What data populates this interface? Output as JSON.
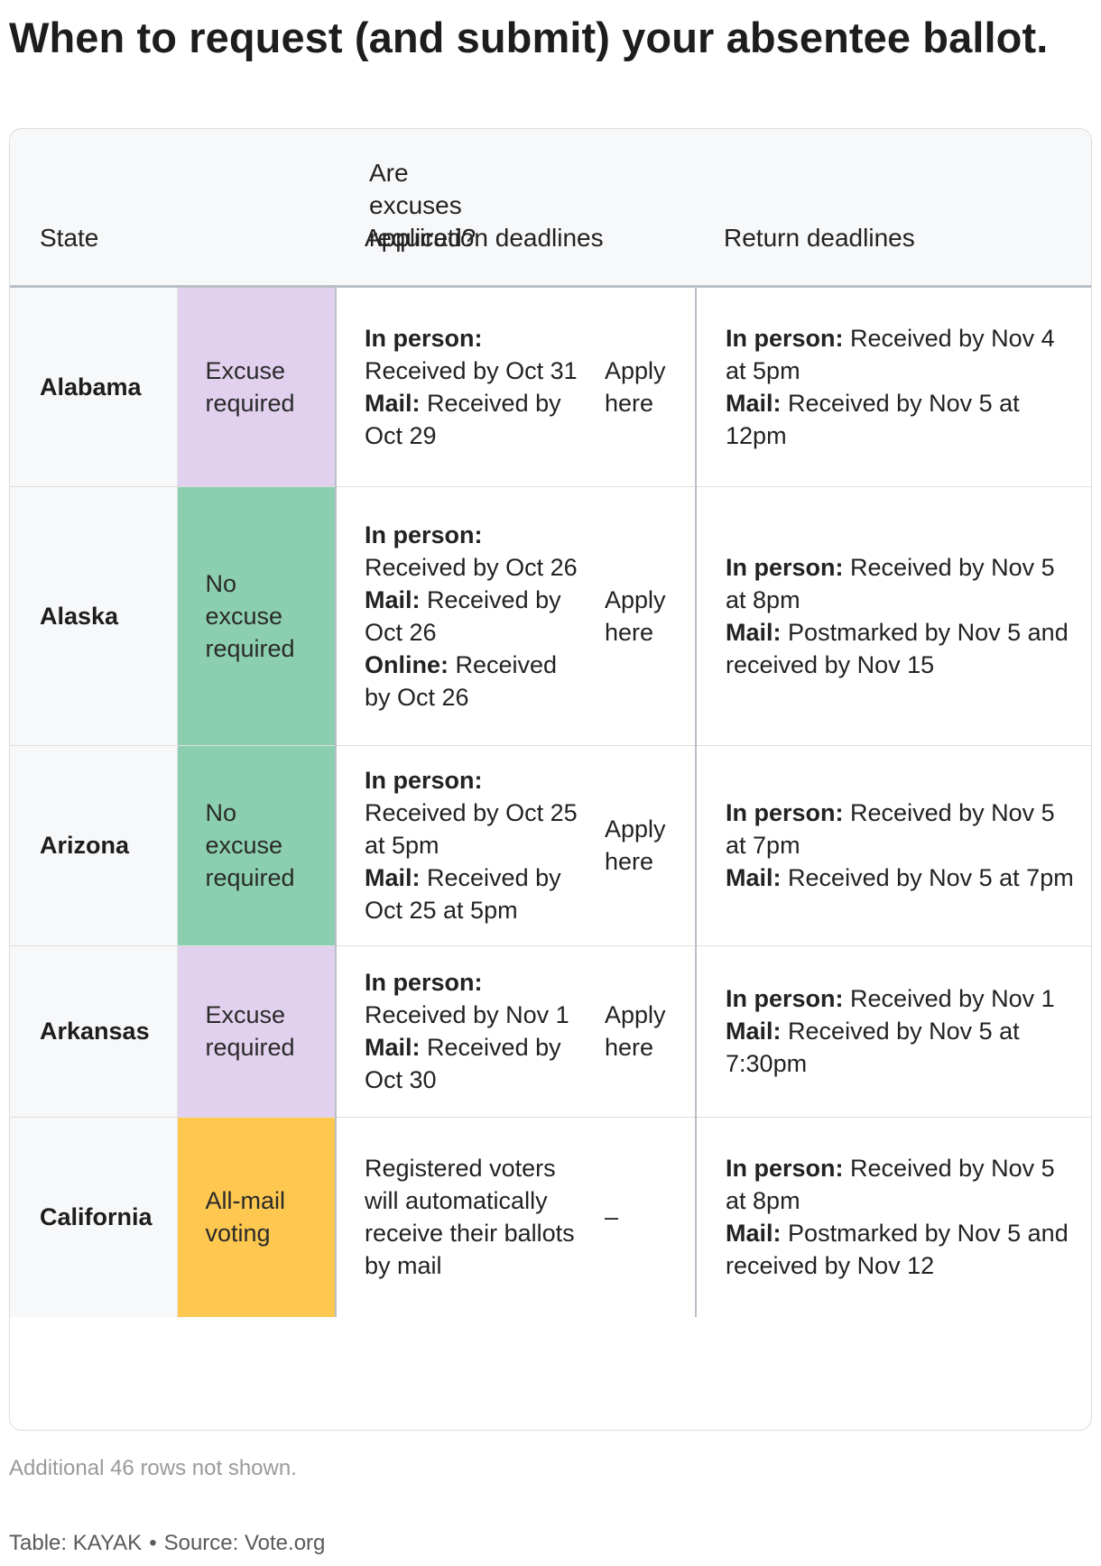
{
  "title": "When to request (and submit) your absentee ballot.",
  "colors": {
    "excuse_required": "#e1d1ee",
    "no_excuse_required": "#8ccfb0",
    "all_mail_voting": "#fdc750"
  },
  "table": {
    "headers": {
      "state": "State",
      "excuse": "Are excuses required?",
      "application": "Application deadlines",
      "return": "Return deadlines"
    },
    "rows": [
      {
        "state": "Alabama",
        "excuse": "Excuse required",
        "excuse_color": "#e1d1ee",
        "application": [
          {
            "label": "In person:",
            "text": "Received by Oct 31"
          },
          {
            "label": "Mail:",
            "text": "Received by Oct 29"
          }
        ],
        "link": "Apply here",
        "return": [
          {
            "label": "In person:",
            "text": "Received by Nov 4 at 5pm"
          },
          {
            "label": "Mail:",
            "text": "Received by Nov 5 at 12pm"
          }
        ]
      },
      {
        "state": "Alaska",
        "excuse": "No excuse required",
        "excuse_color": "#8ccfb0",
        "application": [
          {
            "label": "In person:",
            "text": "Received by Oct 26"
          },
          {
            "label": "Mail:",
            "text": "Received by Oct 26"
          },
          {
            "label": "Online:",
            "text": "Received by Oct 26"
          }
        ],
        "link": "Apply here",
        "return": [
          {
            "label": "In person:",
            "text": "Received by Nov 5 at 8pm"
          },
          {
            "label": "Mail:",
            "text": "Postmarked by Nov 5 and received by Nov 15"
          }
        ]
      },
      {
        "state": "Arizona",
        "excuse": "No excuse required",
        "excuse_color": "#8ccfb0",
        "application": [
          {
            "label": "In person:",
            "text": "Received by Oct 25 at 5pm"
          },
          {
            "label": "Mail:",
            "text": "Received by Oct 25 at 5pm"
          }
        ],
        "link": "Apply here",
        "return": [
          {
            "label": "In person:",
            "text": "Received by Nov 5 at 7pm"
          },
          {
            "label": "Mail:",
            "text": "Received by Nov 5 at 7pm"
          }
        ]
      },
      {
        "state": "Arkansas",
        "excuse": "Excuse required",
        "excuse_color": "#e1d1ee",
        "application": [
          {
            "label": "In person:",
            "text": "Received by Nov 1"
          },
          {
            "label": "Mail:",
            "text": "Received by Oct 30"
          }
        ],
        "link": "Apply here",
        "return": [
          {
            "label": "In person:",
            "text": "Received by Nov 1"
          },
          {
            "label": "Mail:",
            "text": "Received by Nov 5 at 7:30pm"
          }
        ]
      },
      {
        "state": "California",
        "excuse": "All-mail voting",
        "excuse_color": "#fdc750",
        "application": [
          {
            "label": "",
            "text": "Registered voters will automatically receive their ballots by mail"
          }
        ],
        "link": "–",
        "return": [
          {
            "label": "In person:",
            "text": "Received by Nov 5 at 8pm"
          },
          {
            "label": "Mail:",
            "text": "Postmarked by Nov 5 and received by Nov 12"
          }
        ]
      }
    ]
  },
  "footnote": "Additional 46 rows not shown.",
  "credit": {
    "table": "Table: KAYAK",
    "separator": "•",
    "source": "Source: Vote.org"
  }
}
